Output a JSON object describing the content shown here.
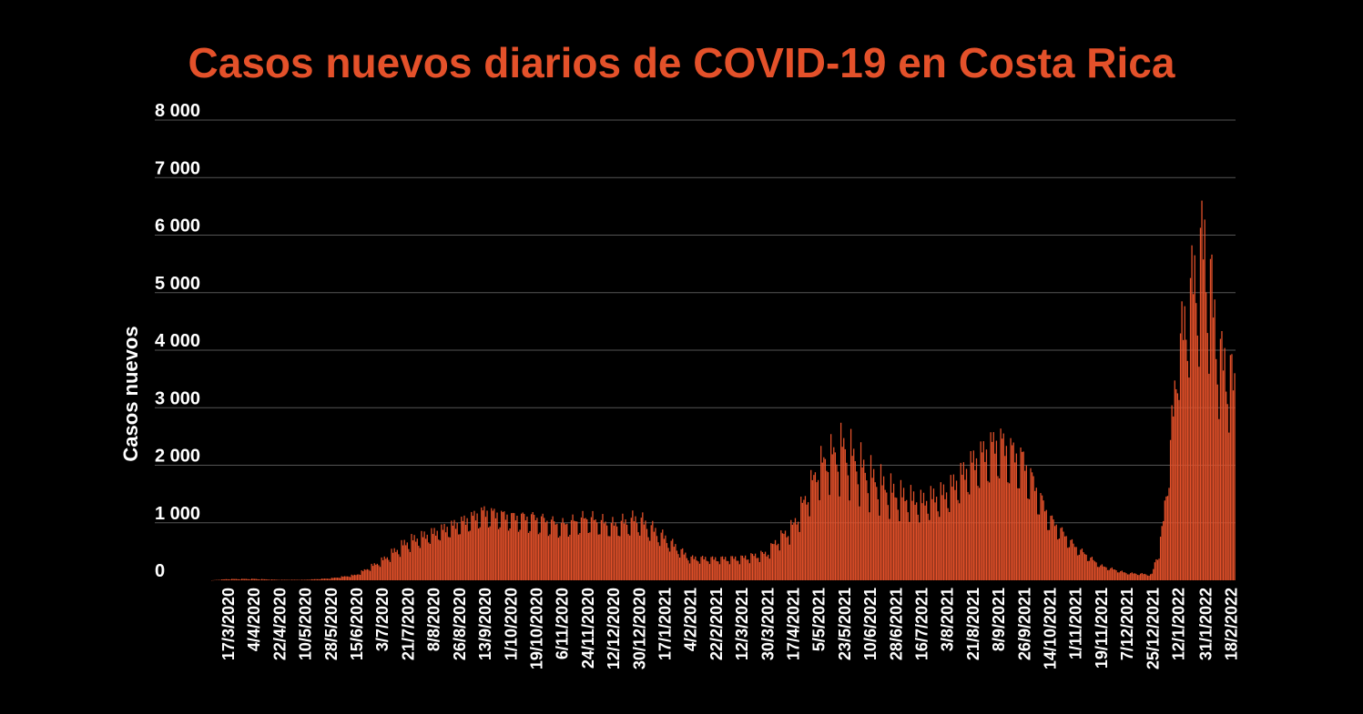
{
  "chart_data": {
    "type": "bar",
    "title": "Casos nuevos diarios de COVID-19 en Costa Rica",
    "ylabel": "Casos nuevos",
    "xlabel": "",
    "ylim": [
      0,
      8000
    ],
    "y_ticks": [
      {
        "value": 0,
        "label": "0"
      },
      {
        "value": 1000,
        "label": "1 000"
      },
      {
        "value": 2000,
        "label": "2 000"
      },
      {
        "value": 3000,
        "label": "3 000"
      },
      {
        "value": 4000,
        "label": "4 000"
      },
      {
        "value": 5000,
        "label": "5 000"
      },
      {
        "value": 6000,
        "label": "6 000"
      },
      {
        "value": 7000,
        "label": "7 000"
      },
      {
        "value": 8000,
        "label": "8 000"
      }
    ],
    "x_tick_labels": [
      "17/3/2020",
      "4/4/2020",
      "22/4/2020",
      "10/5/2020",
      "28/5/2020",
      "15/6/2020",
      "3/7/2020",
      "21/7/2020",
      "8/8/2020",
      "26/8/2020",
      "13/9/2020",
      "1/10/2020",
      "19/10/2020",
      "6/11/2020",
      "24/11/2020",
      "12/12/2020",
      "30/12/2020",
      "17/1/2021",
      "4/2/2021",
      "22/2/2021",
      "12/3/2021",
      "30/3/2021",
      "17/4/2021",
      "5/5/2021",
      "23/5/2021",
      "10/6/2021",
      "28/6/2021",
      "16/7/2021",
      "3/8/2021",
      "21/8/2021",
      "8/9/2021",
      "26/9/2021",
      "14/10/2021",
      "1/11/2021",
      "19/11/2021",
      "7/12/2021",
      "25/12/2021",
      "12/1/2022",
      "31/1/2022",
      "18/2/2022"
    ],
    "series_envelope": {
      "name": "",
      "x": [
        "6/3/2020",
        "17/3/2020",
        "4/4/2020",
        "22/4/2020",
        "10/5/2020",
        "28/5/2020",
        "15/6/2020",
        "3/7/2020",
        "21/7/2020",
        "8/8/2020",
        "26/8/2020",
        "13/9/2020",
        "1/10/2020",
        "19/10/2020",
        "6/11/2020",
        "24/11/2020",
        "12/12/2020",
        "30/12/2020",
        "17/1/2021",
        "4/2/2021",
        "22/2/2021",
        "12/3/2021",
        "30/3/2021",
        "6/4/2021",
        "17/4/2021",
        "28/4/2021",
        "5/5/2021",
        "12/5/2021",
        "23/5/2021",
        "10/6/2021",
        "28/6/2021",
        "16/7/2021",
        "3/8/2021",
        "21/8/2021",
        "8/9/2021",
        "26/9/2021",
        "14/10/2021",
        "1/11/2021",
        "19/11/2021",
        "7/12/2021",
        "25/12/2021",
        "1/1/2022",
        "7/1/2022",
        "12/1/2022",
        "20/1/2022",
        "25/1/2022",
        "31/1/2022",
        "5/2/2022",
        "10/2/2022",
        "18/2/2022",
        "21/2/2022"
      ],
      "high": [
        0,
        25,
        30,
        10,
        10,
        40,
        110,
        400,
        800,
        950,
        1150,
        1400,
        1300,
        1300,
        1150,
        1300,
        1150,
        1300,
        900,
        460,
        440,
        460,
        560,
        820,
        1100,
        1800,
        2300,
        2500,
        2800,
        2200,
        1800,
        1600,
        1800,
        2400,
        2900,
        2500,
        1300,
        700,
        300,
        150,
        120,
        1000,
        2800,
        4600,
        5800,
        6600,
        7200,
        6000,
        4700,
        4300,
        4000
      ],
      "low": [
        0,
        10,
        10,
        5,
        5,
        20,
        60,
        220,
        400,
        600,
        700,
        800,
        750,
        650,
        600,
        650,
        600,
        600,
        450,
        250,
        250,
        250,
        300,
        450,
        600,
        1000,
        1300,
        1400,
        1200,
        1000,
        900,
        900,
        1000,
        1300,
        1400,
        1200,
        700,
        400,
        180,
        90,
        60,
        300,
        1500,
        2600,
        2800,
        2700,
        2700,
        2700,
        2300,
        2100,
        2000
      ]
    }
  }
}
